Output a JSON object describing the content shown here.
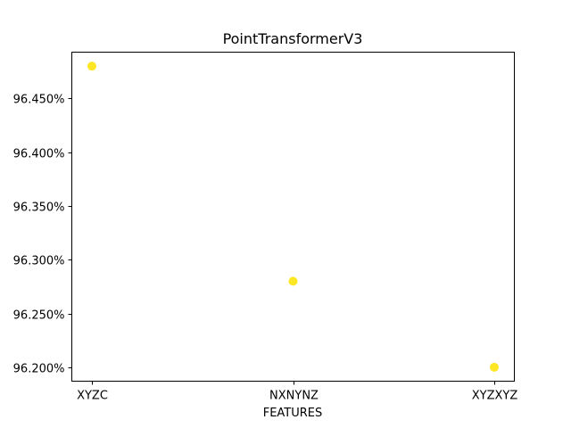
{
  "chart_data": {
    "type": "scatter",
    "title": "PointTransformerV3",
    "xlabel": "FEATURES",
    "ylabel": "",
    "categories": [
      "XYZC",
      "NXNYNZ",
      "XYZXYZ"
    ],
    "series": [
      {
        "values": [
          96.48,
          96.28,
          96.2
        ]
      }
    ],
    "ylim": [
      96.187,
      96.493
    ],
    "yticks": [
      96.2,
      96.25,
      96.3,
      96.35,
      96.4,
      96.45
    ],
    "ytick_labels": [
      "96.200%",
      "96.250%",
      "96.300%",
      "96.350%",
      "96.400%",
      "96.450%"
    ],
    "marker_color": "#fde725",
    "grid": false,
    "legend": "none"
  }
}
